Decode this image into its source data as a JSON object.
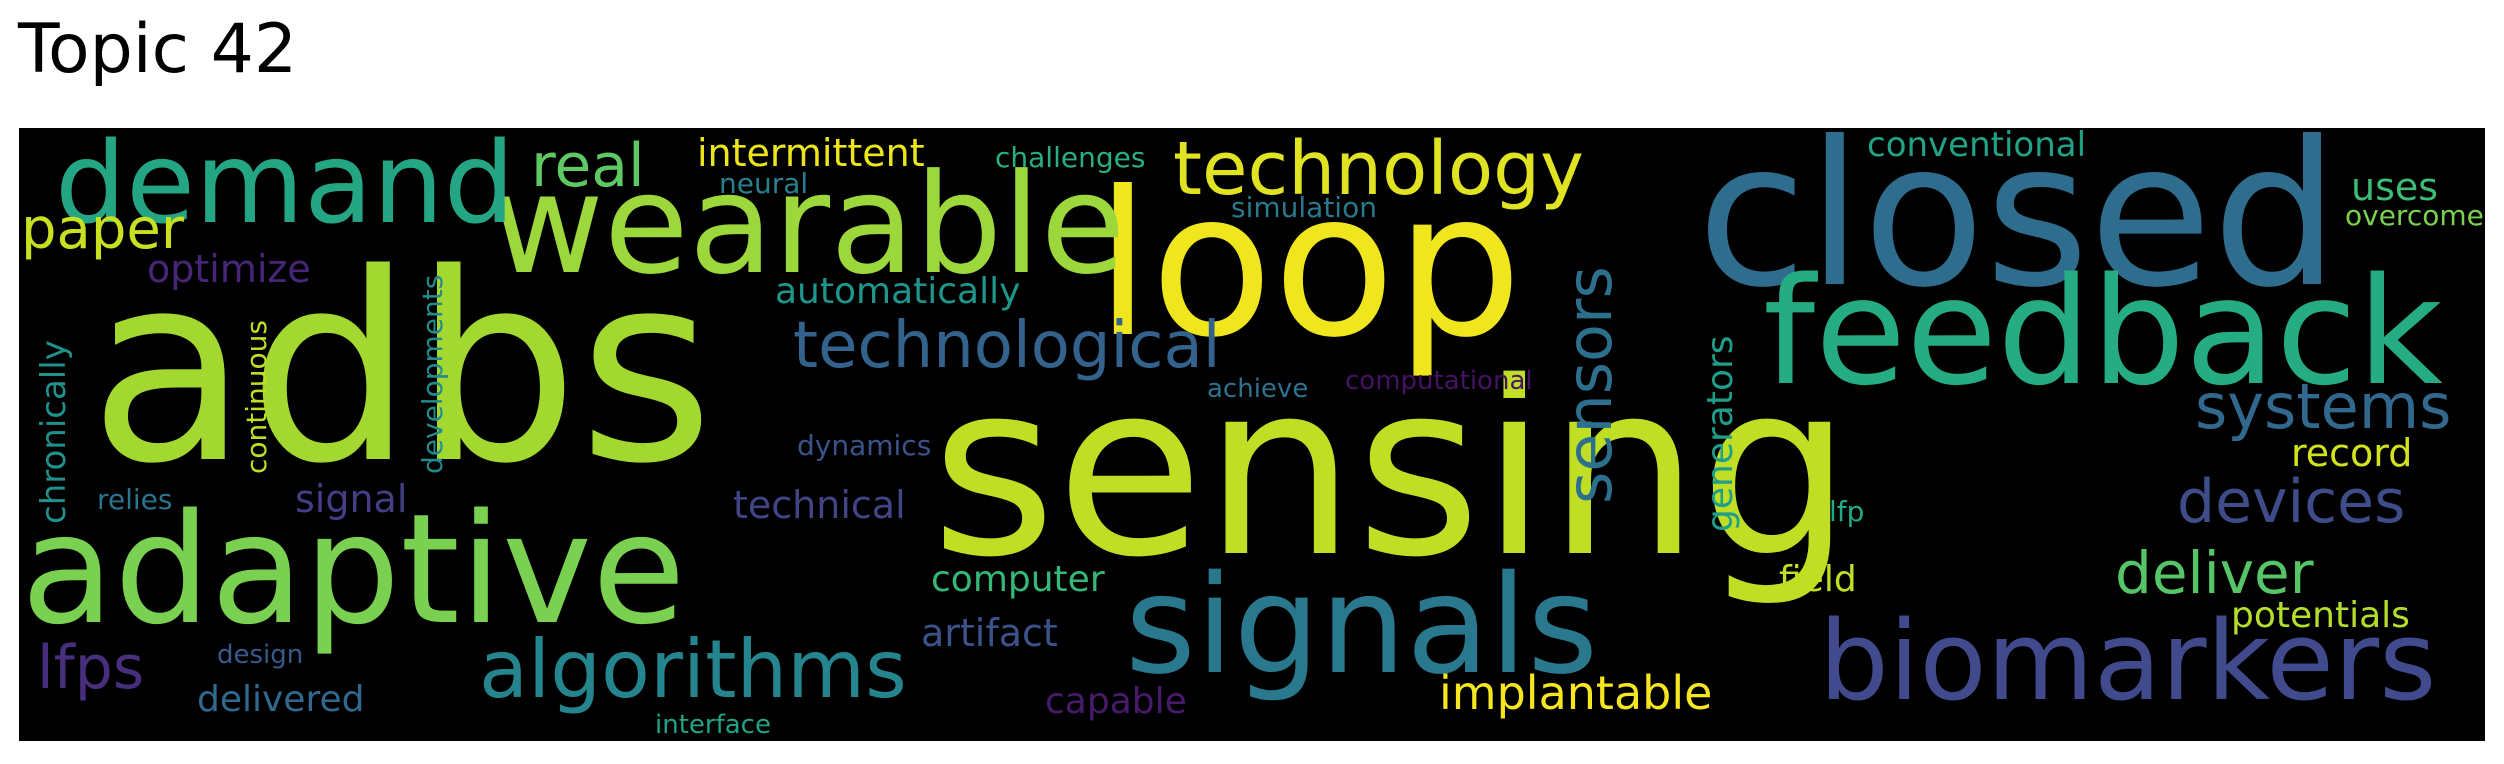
{
  "title": "Topic 42",
  "words": [
    {
      "text": "adbs",
      "color": "#a2d830"
    },
    {
      "text": "sensing",
      "color": "#c0df24"
    },
    {
      "text": "closed",
      "color": "#2e6d8e"
    },
    {
      "text": "loop",
      "color": "#f0e61e"
    },
    {
      "text": "feedback",
      "color": "#25ac82"
    },
    {
      "text": "adaptive",
      "color": "#7ad151"
    },
    {
      "text": "wearable",
      "color": "#9cd83c"
    },
    {
      "text": "demand",
      "color": "#24a685"
    },
    {
      "text": "signals",
      "color": "#2a788e"
    },
    {
      "text": "biomarkers",
      "color": "#404a8c"
    },
    {
      "text": "technology",
      "color": "#e0e322"
    },
    {
      "text": "algorithms",
      "color": "#25858e"
    },
    {
      "text": "technological",
      "color": "#33638d"
    },
    {
      "text": "sensors",
      "color": "#2d708e"
    },
    {
      "text": "systems",
      "color": "#31688e"
    },
    {
      "text": "devices",
      "color": "#3e4c8a"
    },
    {
      "text": "deliver",
      "color": "#56c567"
    },
    {
      "text": "implantable",
      "color": "#f6e620"
    },
    {
      "text": "real",
      "color": "#5ec962"
    },
    {
      "text": "paper",
      "color": "#c8e020"
    },
    {
      "text": "intermittent",
      "color": "#ece51b"
    },
    {
      "text": "lfps",
      "color": "#472f7d"
    },
    {
      "text": "automatically",
      "color": "#1f968b"
    },
    {
      "text": "computer",
      "color": "#35b779"
    },
    {
      "text": "artifact",
      "color": "#3b528b"
    },
    {
      "text": "uses",
      "color": "#3cbc75"
    },
    {
      "text": "conventional",
      "color": "#20a386"
    },
    {
      "text": "record",
      "color": "#d2e21b"
    },
    {
      "text": "potentials",
      "color": "#b5de2b"
    },
    {
      "text": "field",
      "color": "#c2df23"
    },
    {
      "text": "challenges",
      "color": "#29af7f"
    },
    {
      "text": "generators",
      "color": "#1f9e89"
    },
    {
      "text": "continuous",
      "color": "#bddf26"
    },
    {
      "text": "developments",
      "color": "#238a8d"
    },
    {
      "text": "chronically",
      "color": "#21918c"
    },
    {
      "text": "optimize",
      "color": "#482677"
    },
    {
      "text": "signal",
      "color": "#433e85"
    },
    {
      "text": "technical",
      "color": "#414487"
    },
    {
      "text": "delivered",
      "color": "#31688e"
    },
    {
      "text": "capable",
      "color": "#481a6c"
    },
    {
      "text": "interface",
      "color": "#20a386"
    },
    {
      "text": "design",
      "color": "#38598c"
    },
    {
      "text": "relies",
      "color": "#2c738e"
    },
    {
      "text": "dynamics",
      "color": "#3b528b"
    },
    {
      "text": "achieve",
      "color": "#2c728e"
    },
    {
      "text": "computational",
      "color": "#471164"
    },
    {
      "text": "simulation",
      "color": "#2a788e"
    },
    {
      "text": "neural",
      "color": "#27808e"
    },
    {
      "text": "lfp",
      "color": "#22a884"
    },
    {
      "text": "overcome",
      "color": "#7ad151"
    }
  ]
}
